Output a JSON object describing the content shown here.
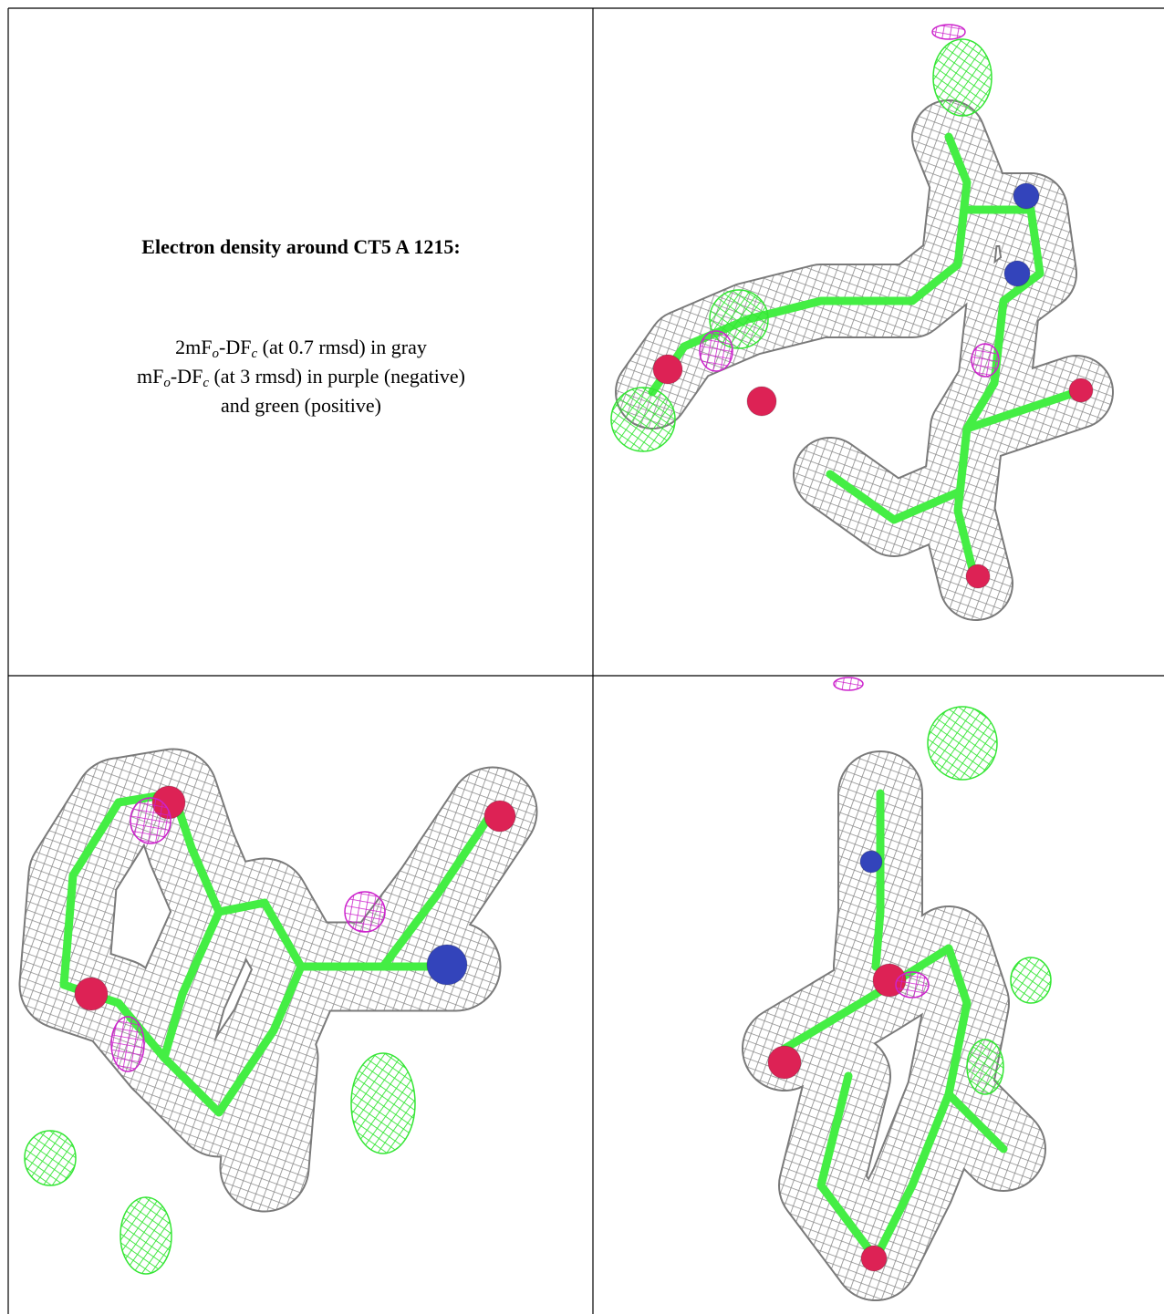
{
  "caption": {
    "title": "Electron density around CT5 A 1215:",
    "lines": [
      [
        "2mF",
        "o",
        "-DF",
        "c",
        " (at 0.7 rmsd) in gray"
      ],
      [
        "mF",
        "o",
        "-DF",
        "c",
        " (at 3 rmsd) in purple (negative)"
      ],
      [
        "and green (positive)"
      ]
    ]
  }
}
